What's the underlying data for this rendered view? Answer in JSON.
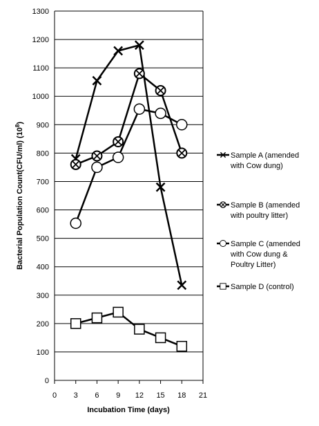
{
  "chart_data": {
    "type": "line",
    "title": "",
    "xlabel": "Incubation Time (days)",
    "ylabel": "Bacterial Population Count(CFU/ml) (10",
    "ylabel_superscript": "8",
    "ylabel_close": ")",
    "xlim": [
      0,
      21
    ],
    "ylim": [
      0,
      1300
    ],
    "x_ticks": [
      "0",
      "3",
      "6",
      "9",
      "12",
      "15",
      "18",
      "21"
    ],
    "y_ticks": [
      "0",
      "100",
      "200",
      "300",
      "400",
      "500",
      "600",
      "700",
      "800",
      "900",
      "1000",
      "1100",
      "1200",
      "1300"
    ],
    "grid": "horizontal",
    "legend_position": "right",
    "series": [
      {
        "name_lines": [
          "Sample A (amended",
          "with Cow dung)"
        ],
        "marker": "x",
        "x": [
          3,
          6,
          9,
          12,
          15,
          18
        ],
        "values": [
          780,
          1055,
          1160,
          1180,
          680,
          335
        ]
      },
      {
        "name_lines": [
          "Sample B (amended",
          "with poultry litter)"
        ],
        "marker": "circle-x",
        "x": [
          3,
          6,
          9,
          12,
          15,
          18
        ],
        "values": [
          760,
          790,
          840,
          1080,
          1020,
          800
        ]
      },
      {
        "name_lines": [
          "Sample C (amended",
          "with Cow dung &",
          "Poultry Litter)"
        ],
        "marker": "circle",
        "x": [
          3,
          6,
          9,
          12,
          15,
          18
        ],
        "values": [
          553,
          750,
          785,
          955,
          940,
          900
        ]
      },
      {
        "name_lines": [
          "Sample D (control)"
        ],
        "marker": "square",
        "x": [
          3,
          6,
          9,
          12,
          15,
          18
        ],
        "values": [
          200,
          220,
          240,
          180,
          150,
          120
        ]
      }
    ]
  }
}
